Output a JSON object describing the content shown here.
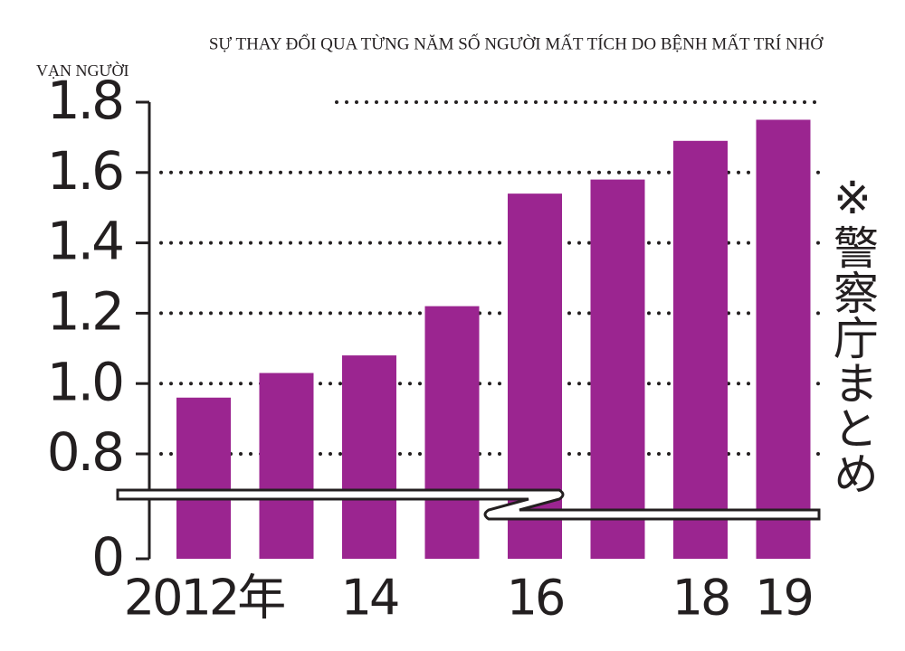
{
  "chart_data": {
    "type": "bar",
    "title": "SỰ THAY ĐỔI QUA TỪNG NĂM SỐ NGƯỜI MẤT TÍCH DO BỆNH MẤT TRÍ NHỚ",
    "y_label": "VẠN NGƯỜI",
    "annotation": "※警察庁まとめ",
    "categories": [
      "2012年",
      null,
      "14",
      null,
      "16",
      null,
      "18",
      "19"
    ],
    "values": [
      0.96,
      1.03,
      1.08,
      1.22,
      1.54,
      1.58,
      1.69,
      1.75
    ],
    "color": "#9b2590",
    "ylim": [
      0,
      1.8
    ],
    "yticks": [
      0,
      0.8,
      {
        "value": 1.0,
        "label": "1.0"
      },
      1.2,
      1.4,
      1.6,
      1.8
    ],
    "axis_break": true,
    "grid": true
  }
}
